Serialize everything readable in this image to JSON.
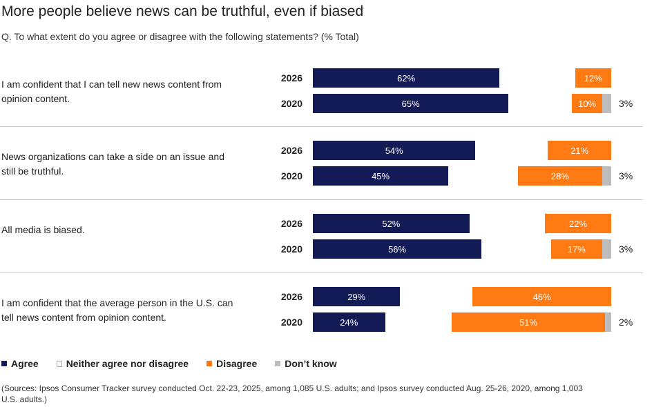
{
  "title": "More people believe news can be truthful, even if biased",
  "subtitle": "Q. To what extent do you agree or disagree with the following statements? (% Total)",
  "colors": {
    "agree": "#131b57",
    "neither": "#ffffff",
    "disagree": "#ff7a12",
    "dont_know": "#bdbdbd"
  },
  "legend": [
    {
      "label": "Agree",
      "key": "agree"
    },
    {
      "label": "Neither agree nor disagree",
      "key": "neither"
    },
    {
      "label": "Disagree",
      "key": "disagree"
    },
    {
      "label": "Don’t know",
      "key": "dont_know"
    }
  ],
  "source": "(Sources: Ipsos Consumer Tracker survey conducted Oct. 22-23, 2025, among 1,085 U.S. adults; and Ipsos survey conducted Aug. 25-26, 2020, among 1,003 U.S. adults.)",
  "chart_data": {
    "type": "bar",
    "title": "More people believe news can be truthful, even if biased",
    "unit": "%",
    "series_names": [
      "Agree",
      "Neither agree nor disagree",
      "Disagree",
      "Don’t know"
    ],
    "groups": [
      {
        "statement": "I am confident that I can tell new news content from opinion content.",
        "rows": [
          {
            "year": "2026",
            "agree": 62,
            "disagree": 12,
            "dont_know": null
          },
          {
            "year": "2020",
            "agree": 65,
            "disagree": 10,
            "dont_know": 3
          }
        ]
      },
      {
        "statement": "News organizations can take a side on an issue and still be truthful.",
        "rows": [
          {
            "year": "2026",
            "agree": 54,
            "disagree": 21,
            "dont_know": null
          },
          {
            "year": "2020",
            "agree": 45,
            "disagree": 28,
            "dont_know": 3
          }
        ]
      },
      {
        "statement": "All media is biased.",
        "rows": [
          {
            "year": "2026",
            "agree": 52,
            "disagree": 22,
            "dont_know": null
          },
          {
            "year": "2020",
            "agree": 56,
            "disagree": 17,
            "dont_know": 3
          }
        ]
      },
      {
        "statement": "I am confident that the average person in the U.S. can tell news content from opinion content.",
        "rows": [
          {
            "year": "2026",
            "agree": 29,
            "disagree": 46,
            "dont_know": null
          },
          {
            "year": "2020",
            "agree": 24,
            "disagree": 51,
            "dont_know": 2
          }
        ]
      }
    ]
  }
}
